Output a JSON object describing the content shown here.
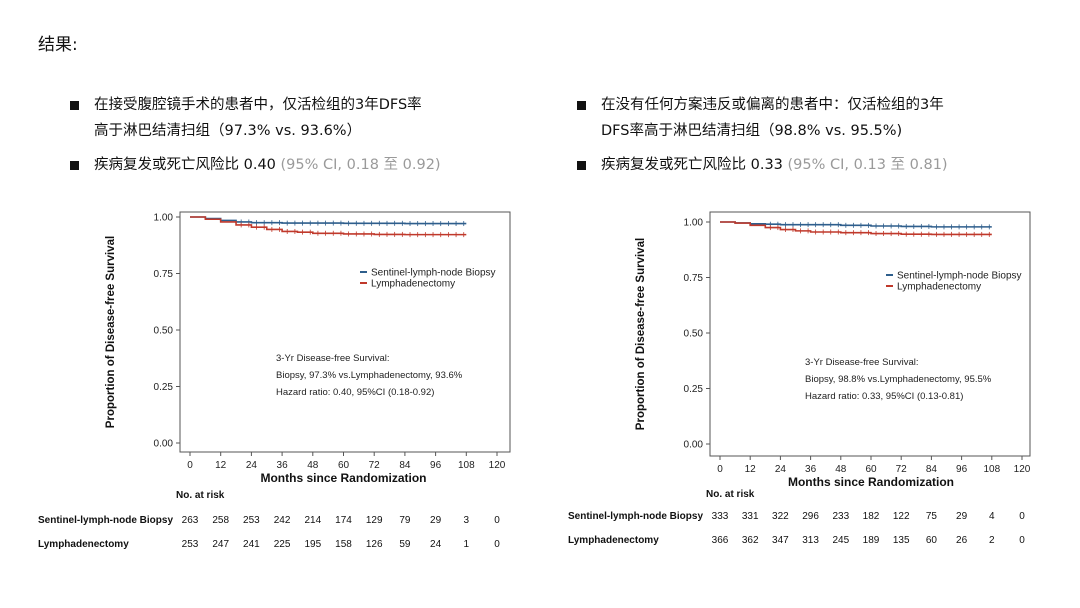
{
  "heading": "结果:",
  "left_bullets": [
    {
      "lines": [
        "在接受腹腔镜手术的患者中，仅活检组的3年DFS率",
        "高于淋巴结清扫组（97.3% vs. 93.6%）"
      ],
      "ci": ""
    },
    {
      "lines": [
        "疾病复发或死亡风险比 0.40"
      ],
      "ci": "(95% CI, 0.18 至 0.92)"
    }
  ],
  "right_bullets": [
    {
      "lines": [
        "在没有任何方案违反或偏离的患者中：仅活检组的3年",
        "DFS率高于淋巴结清扫组（98.8% vs. 95.5%)"
      ],
      "ci": ""
    },
    {
      "lines": [
        "疾病复发或死亡风险比 0.33"
      ],
      "ci": "(95% CI, 0.13 至 0.81)"
    }
  ],
  "chart_data": [
    {
      "type": "line",
      "xlabel": "Months since Randomization",
      "ylabel": "Proportion of Disease-free Survival",
      "xticks": [
        0,
        12,
        24,
        36,
        48,
        60,
        72,
        84,
        96,
        108,
        120
      ],
      "yticks": [
        "0.00",
        "0.25",
        "0.50",
        "0.75",
        "1.00"
      ],
      "xlim": [
        0,
        120
      ],
      "ylim": [
        0,
        1
      ],
      "legend_position": "right",
      "series": [
        {
          "name": "Sentinel-lymph-node Biopsy",
          "color": "#2e5e8c",
          "x": [
            0,
            6,
            12,
            18,
            24,
            36,
            48,
            60,
            72,
            84,
            96,
            108
          ],
          "y": [
            1.0,
            0.993,
            0.985,
            0.978,
            0.975,
            0.973,
            0.973,
            0.972,
            0.972,
            0.971,
            0.971,
            0.971
          ]
        },
        {
          "name": "Lymphadenectomy",
          "color": "#c0392b",
          "x": [
            0,
            6,
            12,
            18,
            24,
            30,
            36,
            42,
            48,
            60,
            72,
            84,
            96,
            108
          ],
          "y": [
            1.0,
            0.99,
            0.978,
            0.965,
            0.955,
            0.945,
            0.936,
            0.933,
            0.928,
            0.925,
            0.923,
            0.922,
            0.922,
            0.922
          ]
        }
      ],
      "annotation": [
        "3-Yr Disease-free Survival:",
        "Biopsy, 97.3% vs.Lymphadenectomy, 93.6%",
        "Hazard ratio: 0.40, 95%CI (0.18-0.92)"
      ],
      "risk_table": {
        "title": "No. at risk",
        "rows": [
          {
            "label": "Sentinel-lymph-node Biopsy",
            "values": [
              263,
              258,
              253,
              242,
              214,
              174,
              129,
              79,
              29,
              3,
              0
            ]
          },
          {
            "label": "Lymphadenectomy",
            "values": [
              253,
              247,
              241,
              225,
              195,
              158,
              126,
              59,
              24,
              1,
              0
            ]
          }
        ]
      }
    },
    {
      "type": "line",
      "xlabel": "Months since Randomization",
      "ylabel": "Proportion of Disease-free Survival",
      "xticks": [
        0,
        12,
        24,
        36,
        48,
        60,
        72,
        84,
        96,
        108,
        120
      ],
      "yticks": [
        "0.00",
        "0.25",
        "0.50",
        "0.75",
        "1.00"
      ],
      "xlim": [
        0,
        120
      ],
      "ylim": [
        0,
        1
      ],
      "legend_position": "right",
      "series": [
        {
          "name": "Sentinel-lymph-node Biopsy",
          "color": "#2e5e8c",
          "x": [
            0,
            6,
            12,
            18,
            24,
            36,
            48,
            60,
            72,
            84,
            96,
            108
          ],
          "y": [
            1.0,
            0.996,
            0.992,
            0.99,
            0.988,
            0.988,
            0.985,
            0.982,
            0.98,
            0.978,
            0.978,
            0.978
          ]
        },
        {
          "name": "Lymphadenectomy",
          "color": "#c0392b",
          "x": [
            0,
            6,
            12,
            18,
            24,
            30,
            36,
            48,
            60,
            72,
            84,
            96,
            108
          ],
          "y": [
            1.0,
            0.995,
            0.985,
            0.975,
            0.966,
            0.96,
            0.955,
            0.952,
            0.948,
            0.945,
            0.944,
            0.944,
            0.944
          ]
        }
      ],
      "annotation": [
        "3-Yr Disease-free Survival:",
        "Biopsy, 98.8% vs.Lymphadenectomy, 95.5%",
        "Hazard ratio: 0.33, 95%CI (0.13-0.81)"
      ],
      "risk_table": {
        "title": "No. at risk",
        "rows": [
          {
            "label": "Sentinel-lymph-node Biopsy",
            "values": [
              333,
              331,
              322,
              296,
              233,
              182,
              122,
              75,
              29,
              4,
              0
            ]
          },
          {
            "label": "Lymphadenectomy",
            "values": [
              366,
              362,
              347,
              313,
              245,
              189,
              135,
              60,
              26,
              2,
              0
            ]
          }
        ]
      }
    }
  ]
}
